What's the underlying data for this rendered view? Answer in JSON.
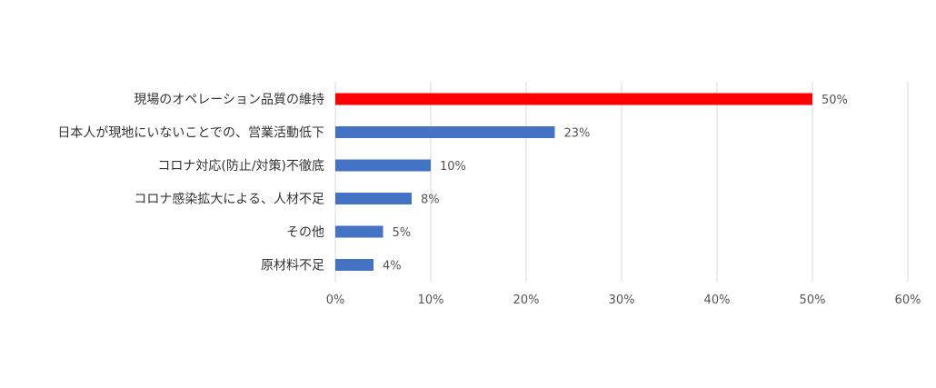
{
  "chart_data": {
    "type": "bar",
    "orientation": "horizontal",
    "categories": [
      "現場のオペレーション品質の維持",
      "日本人が現地にいないことでの、営業活動低下",
      "コロナ対応(防止/対策)不徹底",
      "コロナ感染拡大による、人材不足",
      "その他",
      "原材料不足"
    ],
    "values": [
      50,
      23,
      10,
      8,
      5,
      4
    ],
    "value_labels": [
      "50%",
      "23%",
      "10%",
      "8%",
      "5%",
      "4%"
    ],
    "bar_colors": [
      "#ff0000",
      "#4472c4",
      "#4472c4",
      "#4472c4",
      "#4472c4",
      "#4472c4"
    ],
    "xlim": [
      0,
      60
    ],
    "x_ticks": [
      0,
      10,
      20,
      30,
      40,
      50,
      60
    ],
    "x_tick_labels": [
      "0%",
      "10%",
      "20%",
      "30%",
      "40%",
      "50%",
      "60%"
    ],
    "grid": true,
    "title": "",
    "xlabel": "",
    "ylabel": ""
  }
}
